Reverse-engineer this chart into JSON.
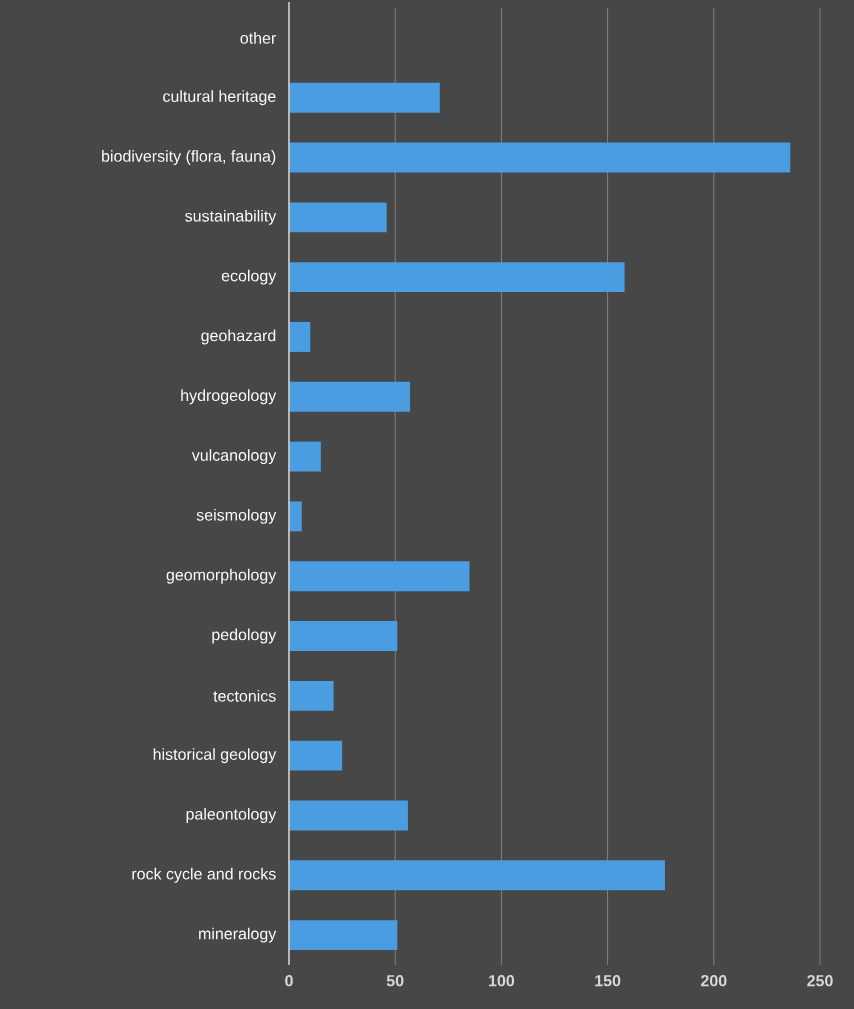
{
  "chart_data": {
    "type": "bar",
    "orientation": "horizontal",
    "categories": [
      "other",
      "cultural heritage",
      "biodiversity (flora, fauna)",
      "sustainability",
      "ecology",
      "geohazard",
      "hydrogeology",
      "vulcanology",
      "seismology",
      "geomorphology",
      "pedology",
      "tectonics",
      "historical geology",
      "paleontology",
      "rock cycle and rocks",
      "mineralogy"
    ],
    "values": [
      0,
      71,
      236,
      46,
      158,
      10,
      57,
      15,
      6,
      85,
      51,
      21,
      25,
      56,
      177,
      51
    ],
    "color": "#4a9de0",
    "xlim": [
      0,
      250
    ],
    "xticks": [
      0,
      50,
      100,
      150,
      200,
      250
    ],
    "grid": "x"
  }
}
